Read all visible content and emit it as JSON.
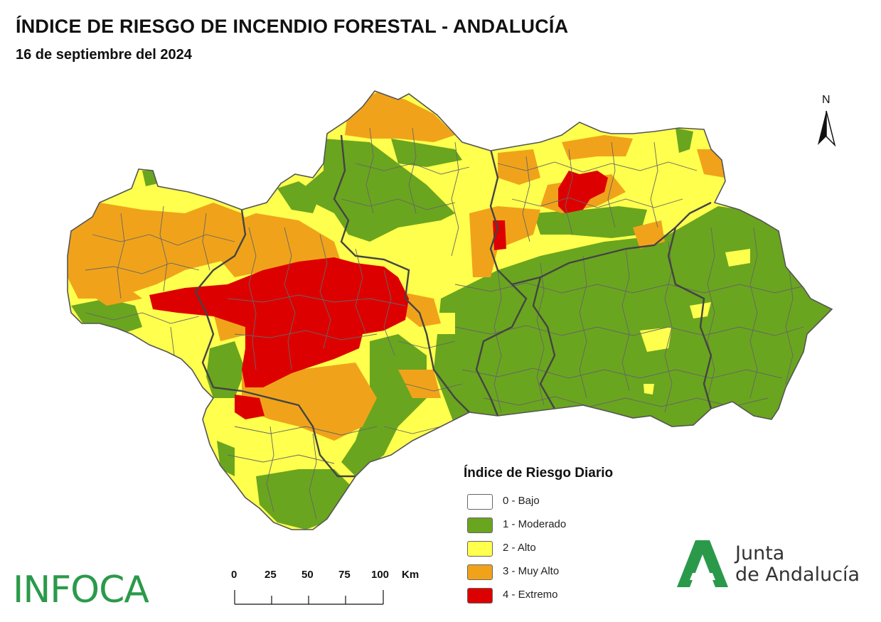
{
  "header": {
    "title": "ÍNDICE DE RIESGO DE INCENDIO FORESTAL - ANDALUCÍA",
    "subtitle": "16 de septiembre del 2024"
  },
  "map": {
    "north_label": "N",
    "colors": {
      "bajo": "#ffffff",
      "moderado": "#6aa51f",
      "alto": "#ffff4d",
      "muy_alto": "#f0a31a",
      "extremo": "#dd0000",
      "boundaries": "#555555"
    }
  },
  "legend": {
    "title": "Índice de Riesgo Diario",
    "items": [
      {
        "label": "0 - Bajo",
        "color": "#ffffff"
      },
      {
        "label": "1 - Moderado",
        "color": "#6aa51f"
      },
      {
        "label": "2 - Alto",
        "color": "#ffff4d"
      },
      {
        "label": "3 - Muy Alto",
        "color": "#f0a31a"
      },
      {
        "label": "4 - Extremo",
        "color": "#dd0000"
      }
    ]
  },
  "scale": {
    "ticks": [
      "0",
      "25",
      "50",
      "75",
      "100"
    ],
    "unit": "Km"
  },
  "branding": {
    "infoca": "INFOCA",
    "junta_line1": "Junta",
    "junta_line2": "de Andalucía"
  }
}
